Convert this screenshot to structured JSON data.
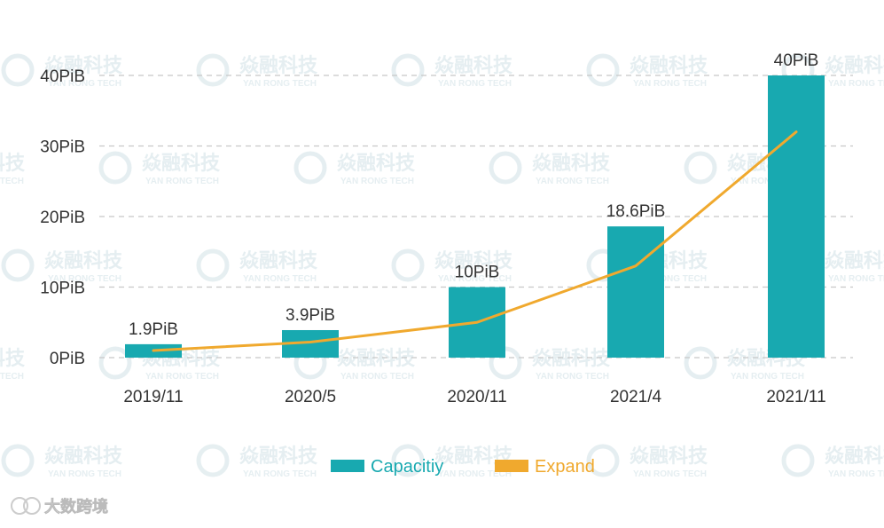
{
  "watermark": {
    "text": "焱融科技",
    "subtext": "YAN RONG TECH"
  },
  "corner_brand": {
    "text": "大数跨境"
  },
  "colors": {
    "bar": "#18A9B0",
    "line": "#F0A92E",
    "grid": "#C8C8C8",
    "axis_text": "#333333",
    "watermark": "#E3EDF0"
  },
  "chart_data": {
    "type": "bar",
    "categories": [
      "2019/11",
      "2020/5",
      "2020/11",
      "2021/4",
      "2021/11"
    ],
    "series": [
      {
        "name": "Capacitiy",
        "type": "bar",
        "values": [
          1.9,
          3.9,
          10,
          18.6,
          40
        ],
        "labels": [
          "1.9PiB",
          "3.9PiB",
          "10PiB",
          "18.6PiB",
          "40PiB"
        ]
      },
      {
        "name": "Expand",
        "type": "line",
        "values": [
          1,
          2.2,
          5,
          13,
          32
        ]
      }
    ],
    "ylim": [
      0,
      40
    ],
    "yticks": [
      0,
      10,
      20,
      30,
      40
    ],
    "ytick_labels": [
      "0PiB",
      "10PiB",
      "20PiB",
      "30PiB",
      "40PiB"
    ],
    "grid": true,
    "legend": "bottom"
  }
}
